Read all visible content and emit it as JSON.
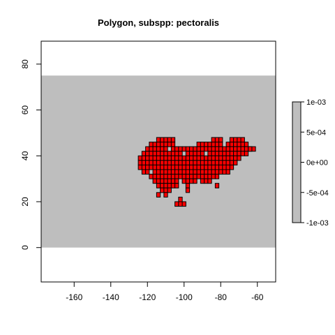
{
  "chart_data": {
    "type": "heatmap",
    "title": "Polygon, subspp: pectoralis",
    "xlabel": "",
    "ylabel": "",
    "xlim": [
      -178,
      -50
    ],
    "ylim": [
      -15,
      90
    ],
    "x_ticks": [
      -160,
      -140,
      -120,
      -100,
      -80,
      -60
    ],
    "x_tick_labels": [
      "-160",
      "-140",
      "-120",
      "-100",
      "-80",
      "-60"
    ],
    "y_ticks": [
      0,
      20,
      40,
      60,
      80
    ],
    "y_tick_labels": [
      "0",
      "20",
      "40",
      "60",
      "80"
    ],
    "grid": false,
    "raster_extent": {
      "xmin": -178,
      "xmax": -50,
      "ymin": 0,
      "ymax": 75
    },
    "raster_value": 0,
    "raster_color": "#bebebe",
    "polygon_fill": "#ff0000",
    "polygon_outline": "#000000",
    "polygon": {
      "cell_size": 2,
      "main_rows": [
        {
          "y": 47,
          "x0": -114,
          "x1": -106
        },
        {
          "y": 45,
          "x0": -118,
          "x1": -106
        },
        {
          "y": 47,
          "x0": -84,
          "x1": -80
        },
        {
          "y": 47,
          "x0": -74,
          "x1": -68
        },
        {
          "y": 45,
          "x0": -92,
          "x1": -66
        },
        {
          "y": 43,
          "x0": -120,
          "x1": -62
        },
        {
          "y": 41,
          "x0": -122,
          "x1": -66
        },
        {
          "y": 39,
          "x0": -124,
          "x1": -70
        },
        {
          "y": 37,
          "x0": -124,
          "x1": -72
        },
        {
          "y": 35,
          "x0": -124,
          "x1": -74
        },
        {
          "y": 33,
          "x0": -122,
          "x1": -76
        },
        {
          "y": 31,
          "x0": -118,
          "x1": -82
        },
        {
          "y": 29,
          "x0": -116,
          "x1": -86
        },
        {
          "y": 27,
          "x0": -114,
          "x1": -104
        },
        {
          "y": 25,
          "x0": -112,
          "x1": -110
        }
      ],
      "outlier_cells": [
        {
          "x": -114,
          "y": 23
        },
        {
          "x": -108,
          "y": 25
        },
        {
          "x": -110,
          "y": 23
        },
        {
          "x": -98,
          "y": 27
        },
        {
          "x": -82,
          "y": 27
        },
        {
          "x": -98,
          "y": 25
        },
        {
          "x": -102,
          "y": 21
        },
        {
          "x": -104,
          "y": 19
        },
        {
          "x": -102,
          "y": 19
        },
        {
          "x": -100,
          "y": 19
        },
        {
          "x": -64,
          "y": 43
        }
      ],
      "holes": [
        {
          "x": -108,
          "y": 43
        },
        {
          "x": -100,
          "y": 41
        },
        {
          "x": -88,
          "y": 41
        },
        {
          "x": -78,
          "y": 45
        },
        {
          "x": -102,
          "y": 29
        },
        {
          "x": -118,
          "y": 33
        },
        {
          "x": -92,
          "y": 29
        }
      ]
    },
    "legend": {
      "placement": "right",
      "ticks": [
        0.001,
        0.0005,
        0,
        -0.0005,
        -0.001
      ],
      "tick_labels": [
        "1e-03",
        "5e-04",
        "0e+00",
        "-5e-04",
        "-1e-03"
      ],
      "color": "#bebebe"
    }
  }
}
